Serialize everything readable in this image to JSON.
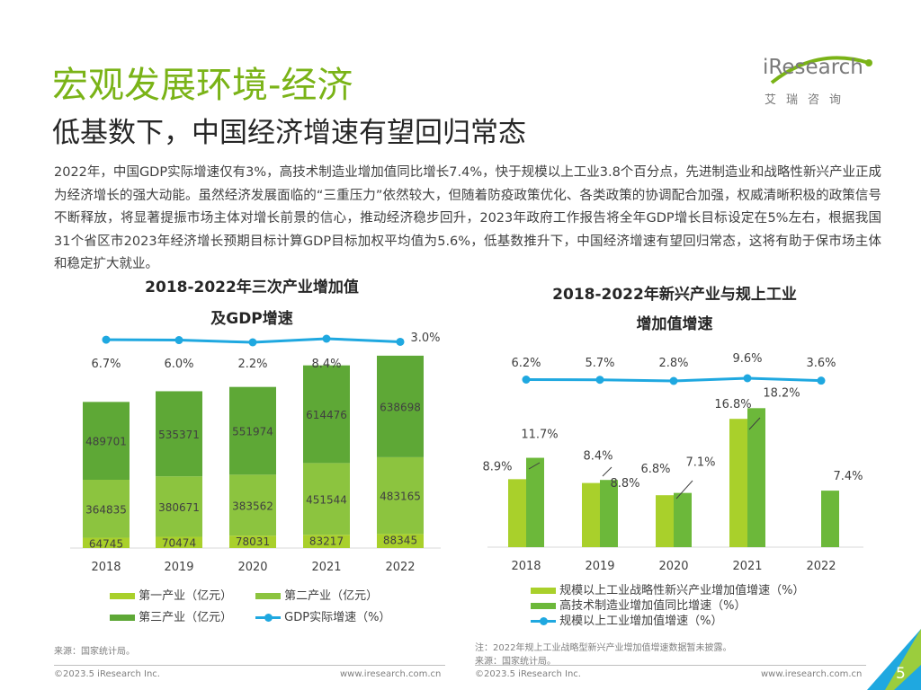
{
  "header": {
    "title": "宏观发展环境-经济",
    "subtitle": "低基数下，中国经济增速有望回归常态",
    "logo_text": "iResearch",
    "logo_sub": "艾瑞咨询"
  },
  "body_text": "2022年，中国GDP实际增速仅有3%，高技术制造业增加值同比增长7.4%，快于规模以上工业3.8个百分点，先进制造业和战略性新兴产业正成为经济增长的强大动能。虽然经济发展面临的“三重压力”依然较大，但随着防疫政策优化、各类政策的协调配合加强，权威清晰积极的政策信号不断释放，将显著提振市场主体对增长前景的信心，推动经济稳步回升，2023年政府工作报告将全年GDP增长目标设定在5%左右，根据我国31个省区市2023年经济增长预期目标计算GDP目标加权平均值为5.6%，低基数推升下，中国经济增速有望回归常态，这将有助于保市场主体和稳定扩大就业。",
  "colors": {
    "primary_industry": "#a9d02b",
    "secondary_industry": "#8cc43f",
    "tertiary_industry": "#5ea836",
    "gdp_line": "#1fa8e0",
    "strategic": "#a9d02b",
    "hightech": "#6cb83a",
    "industrial_line": "#1fa8e0"
  },
  "chart_data": [
    {
      "type": "bar",
      "stacked": true,
      "title_line1": "2018-2022年三次产业增加值",
      "title_line2": "及GDP增速",
      "categories": [
        "2018",
        "2019",
        "2020",
        "2021",
        "2022"
      ],
      "series": [
        {
          "name": "第一产业（亿元）",
          "values": [
            64745,
            70474,
            78031,
            83217,
            88345
          ]
        },
        {
          "name": "第二产业（亿元）",
          "values": [
            364835,
            380671,
            383562,
            451544,
            483165
          ]
        },
        {
          "name": "第三产业（亿元）",
          "values": [
            489701,
            535371,
            551974,
            614476,
            638698
          ]
        }
      ],
      "line_series": {
        "name": "GDP实际增速（%）",
        "values": [
          6.7,
          6.0,
          2.2,
          8.4,
          3.0
        ]
      },
      "line_labels": [
        "6.7%",
        "6.0%",
        "2.2%",
        "8.4%",
        "3.0%"
      ]
    },
    {
      "type": "bar",
      "title_line1": "2018-2022年新兴产业与规上工业",
      "title_line2": "增加值增速",
      "categories": [
        "2018",
        "2019",
        "2020",
        "2021",
        "2022"
      ],
      "series": [
        {
          "name": "规模以上工业战略性新兴产业增加值增速（%）",
          "values": [
            8.9,
            8.4,
            6.8,
            16.8,
            null
          ]
        },
        {
          "name": "高技术制造业增加值同比增速（%）",
          "values": [
            11.7,
            8.8,
            7.1,
            18.2,
            7.4
          ]
        }
      ],
      "bar_labels": [
        [
          "8.9%",
          "8.4%",
          "6.8%",
          "16.8%",
          ""
        ],
        [
          "11.7%",
          "8.8%",
          "7.1%",
          "18.2%",
          "7.4%"
        ]
      ],
      "line_series": {
        "name": "规模以上工业增加值增速（%）",
        "values": [
          6.2,
          5.7,
          2.8,
          9.6,
          3.6
        ]
      },
      "line_labels": [
        "6.2%",
        "5.7%",
        "2.8%",
        "9.6%",
        "3.6%"
      ]
    }
  ],
  "legends": {
    "left": [
      "第一产业（亿元）",
      "第二产业（亿元）",
      "第三产业（亿元）",
      "GDP实际增速（%）"
    ],
    "right": [
      "规模以上工业战略性新兴产业增加值增速（%）",
      "高技术制造业增加值同比增速（%）",
      "规模以上工业增加值增速（%）"
    ]
  },
  "notes": {
    "left_source": "来源：国家统计局。",
    "right_note": "注：2022年规上工业战略型新兴产业增加值增速数据暂未披露。",
    "right_source": "来源：国家统计局。"
  },
  "footer": {
    "copyright_left": "©2023.5 iResearch Inc.",
    "url_left": "www.iresearch.com.cn",
    "copyright_right": "©2023.5 iResearch Inc.",
    "url_right": "www.iresearch.com.cn",
    "page_number": "5"
  }
}
